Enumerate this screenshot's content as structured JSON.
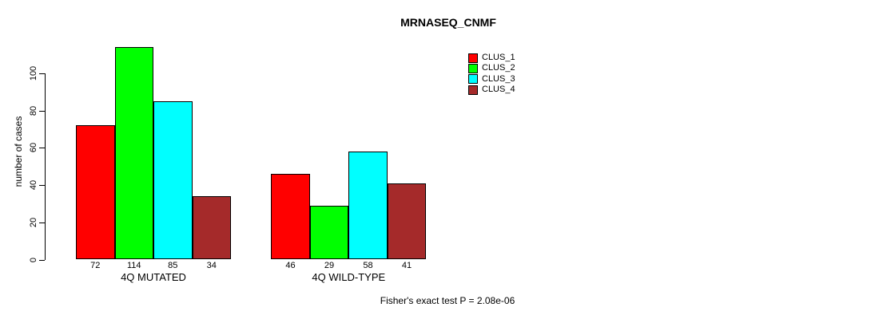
{
  "chart_data": {
    "type": "bar",
    "title": "MRNASEQ_CNMF",
    "ylabel": "number of cases",
    "xlabel": "",
    "ylim": [
      0,
      100
    ],
    "yticks": [
      0,
      20,
      40,
      60,
      80,
      100
    ],
    "grid": false,
    "legend_position": "top-right",
    "categories": [
      "4Q MUTATED",
      "4Q WILD-TYPE"
    ],
    "series": [
      {
        "name": "CLUS_1",
        "color": "#FF0000",
        "values": [
          72,
          46
        ]
      },
      {
        "name": "CLUS_2",
        "color": "#00FF00",
        "values": [
          114,
          29
        ]
      },
      {
        "name": "CLUS_3",
        "color": "#00FFFF",
        "values": [
          85,
          58
        ]
      },
      {
        "name": "CLUS_4",
        "color": "#A52A2A",
        "values": [
          34,
          41
        ]
      }
    ],
    "bar_value_labels": [
      [
        72,
        114,
        85,
        34
      ],
      [
        46,
        29,
        58,
        41
      ]
    ],
    "annotation": "Fisher's exact test P = 2.08e-06"
  }
}
